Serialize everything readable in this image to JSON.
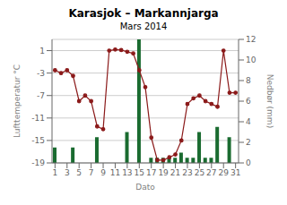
{
  "chart_data": {
    "type": "bar",
    "title": "Karasjok – Markannjarga",
    "subtitle": "Mars 2014",
    "xlabel": "Dato",
    "ylabel": "Lufttemperatur °C",
    "y2label": "Nedbør (mm)",
    "x": [
      1,
      2,
      3,
      4,
      5,
      6,
      7,
      8,
      9,
      10,
      11,
      12,
      13,
      14,
      15,
      16,
      17,
      18,
      19,
      20,
      21,
      22,
      23,
      24,
      25,
      26,
      27,
      28,
      29,
      30,
      31
    ],
    "xlim": [
      0.5,
      31.5
    ],
    "xticks": [
      1,
      3,
      5,
      7,
      9,
      11,
      13,
      15,
      17,
      19,
      21,
      23,
      25,
      27,
      29,
      31
    ],
    "ylim": [
      -19.0,
      3.0
    ],
    "yticks": [
      -19.0,
      -15.0,
      -11.0,
      -7.0,
      -3.0,
      1.0
    ],
    "y2lim": [
      0.0,
      12.0
    ],
    "y2ticks": [
      0.0,
      2.0,
      4.0,
      6.0,
      8.0,
      10.0,
      12.0
    ],
    "grid": true,
    "series": [
      {
        "type": "bar",
        "axis": "y2",
        "color": "#1a6b30",
        "values": [
          1.5,
          0.0,
          0.0,
          1.5,
          0.0,
          0.0,
          0.0,
          2.5,
          0.0,
          0.0,
          0.0,
          0.0,
          3.0,
          0.0,
          12.0,
          0.0,
          0.5,
          0.5,
          0.5,
          0.5,
          0.5,
          1.0,
          0.5,
          0.5,
          3.0,
          0.5,
          0.5,
          3.5,
          0.0,
          2.5,
          0.0
        ]
      },
      {
        "type": "line",
        "color": "#8b1a1a",
        "marker": "o",
        "values": [
          -2.5,
          -3.0,
          -2.5,
          -3.5,
          -8.0,
          -7.0,
          -8.0,
          -12.5,
          -13.0,
          1.0,
          1.2,
          1.1,
          0.8,
          0.5,
          -2.5,
          -5.5,
          -14.5,
          -18.5,
          -18.5,
          -18.0,
          -17.5,
          -15.0,
          -8.5,
          -7.5,
          -7.0,
          -8.0,
          -8.5,
          -9.0,
          1.0,
          -6.5,
          -6.5
        ]
      }
    ]
  }
}
